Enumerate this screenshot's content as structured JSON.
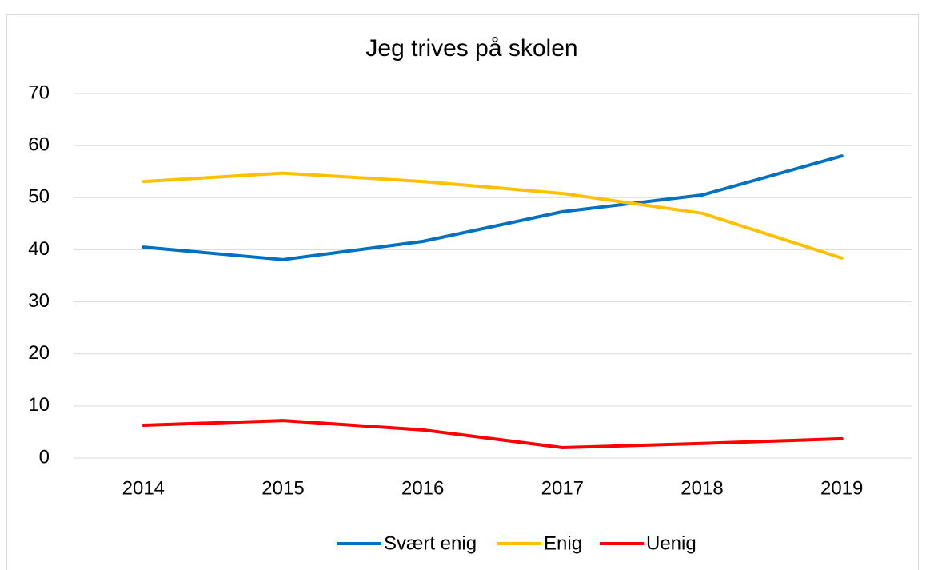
{
  "chart_data": {
    "type": "line",
    "title": "Jeg trives på skolen",
    "categories": [
      "2014",
      "2015",
      "2016",
      "2017",
      "2018",
      "2019"
    ],
    "series": [
      {
        "name": "Svært enig",
        "color": "#0070c0",
        "values": [
          40.5,
          38.1,
          41.6,
          47.3,
          50.5,
          58.0
        ]
      },
      {
        "name": "Enig",
        "color": "#ffc000",
        "values": [
          53.1,
          54.7,
          53.1,
          50.8,
          47.0,
          38.4
        ]
      },
      {
        "name": "Uenig",
        "color": "#ff0000",
        "values": [
          6.3,
          7.2,
          5.4,
          2.0,
          2.8,
          3.7
        ]
      }
    ],
    "ylim": [
      0,
      70
    ],
    "yticks": [
      0,
      10,
      20,
      30,
      40,
      50,
      60,
      70
    ],
    "grid": true,
    "legend": "bottom"
  }
}
